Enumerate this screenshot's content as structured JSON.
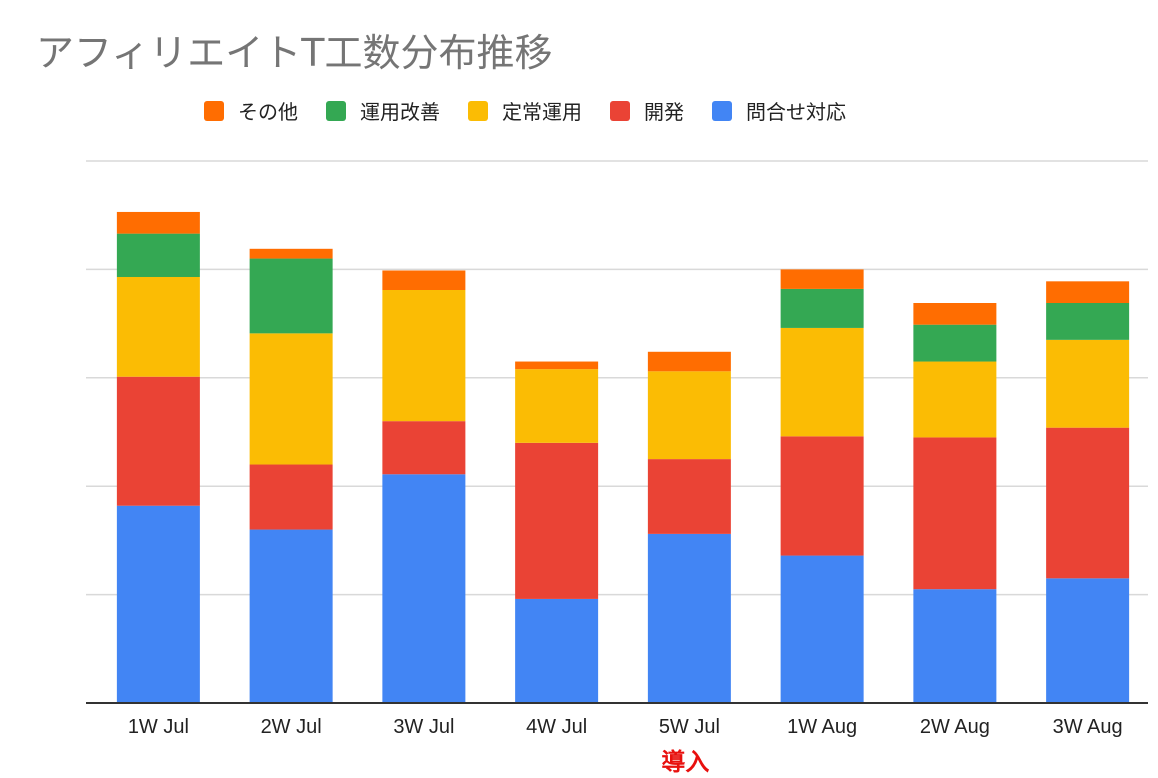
{
  "chart_data": {
    "type": "bar",
    "stacked": true,
    "title": "アフィリエイトT工数分布推移",
    "legend_position": "top",
    "grid": true,
    "categories": [
      "1W Jul",
      "2W Jul",
      "3W Jul",
      "4W Jul",
      "5W Jul",
      "1W Aug",
      "2W Aug",
      "3W Aug"
    ],
    "ylim": [
      0,
      50
    ],
    "series": [
      {
        "name": "問合せ対応",
        "color": "#4285f4",
        "values": [
          18.2,
          16.0,
          21.1,
          9.6,
          15.6,
          13.6,
          10.5,
          11.5
        ]
      },
      {
        "name": "開発",
        "color": "#ea4335",
        "values": [
          11.9,
          6.0,
          4.9,
          14.4,
          6.9,
          11.0,
          14.0,
          13.9
        ]
      },
      {
        "name": "定常運用",
        "color": "#fbbc04",
        "values": [
          9.2,
          12.1,
          12.1,
          6.8,
          8.1,
          10.0,
          7.0,
          8.1
        ]
      },
      {
        "name": "運用改善",
        "color": "#34a853",
        "values": [
          4.0,
          6.9,
          0,
          0,
          0,
          3.6,
          3.4,
          3.4
        ]
      },
      {
        "name": "その他",
        "color": "#ff6d01",
        "values": [
          2.0,
          0.9,
          1.8,
          0.7,
          1.8,
          1.8,
          2.0,
          2.0
        ]
      }
    ],
    "legend_order": [
      "その他",
      "運用改善",
      "定常運用",
      "開発",
      "問合せ対応"
    ],
    "annotation": {
      "text": "導入",
      "category": "5W Jul",
      "color": "#e8100e"
    }
  }
}
